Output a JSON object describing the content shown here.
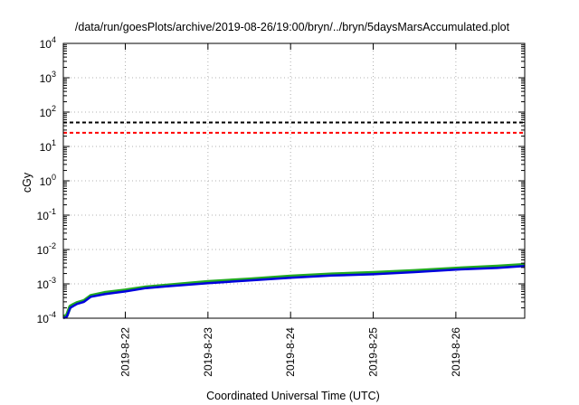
{
  "chart_data": {
    "type": "line",
    "title": "/data/run/goesPlots/archive/2019-08-26/19:00/bryn/../bryn/5daysMarsAccumulated.plot",
    "xlabel": "Coordinated Universal Time (UTC)",
    "ylabel": "cGy",
    "y_scale": "log",
    "ylim": [
      0.0001,
      10000
    ],
    "xlim": [
      "2019-08-21 06:00",
      "2019-08-26 20:00"
    ],
    "grid": true,
    "legend": "none",
    "y_ticks": [
      {
        "value": 0.0001,
        "base": "10",
        "exp": "-4"
      },
      {
        "value": 0.001,
        "base": "10",
        "exp": "-3"
      },
      {
        "value": 0.01,
        "base": "10",
        "exp": "-2"
      },
      {
        "value": 0.1,
        "base": "10",
        "exp": "-1"
      },
      {
        "value": 1,
        "base": "10",
        "exp": "0"
      },
      {
        "value": 10,
        "base": "10",
        "exp": "1"
      },
      {
        "value": 100,
        "base": "10",
        "exp": "2"
      },
      {
        "value": 1000,
        "base": "10",
        "exp": "3"
      },
      {
        "value": 10000,
        "base": "10",
        "exp": "4"
      }
    ],
    "x_ticks": [
      {
        "value": "2019-08-22 00:00",
        "label": "2019-8-22"
      },
      {
        "value": "2019-08-23 00:00",
        "label": "2019-8-23"
      },
      {
        "value": "2019-08-24 00:00",
        "label": "2019-8-24"
      },
      {
        "value": "2019-08-25 00:00",
        "label": "2019-8-25"
      },
      {
        "value": "2019-08-26 00:00",
        "label": "2019-8-26"
      }
    ],
    "reference_lines": [
      {
        "y": 50,
        "color": "#000000",
        "style": "dashed"
      },
      {
        "y": 25,
        "color": "#ff0000",
        "style": "dashed"
      }
    ],
    "series": [
      {
        "color": "#22aa22",
        "x": [
          "2019-08-21 06:00",
          "2019-08-21 07:00",
          "2019-08-21 08:00",
          "2019-08-21 09:00",
          "2019-08-21 10:00",
          "2019-08-21 12:00",
          "2019-08-21 14:00",
          "2019-08-21 18:00",
          "2019-08-22 00:00",
          "2019-08-22 06:00",
          "2019-08-22 12:00",
          "2019-08-23 00:00",
          "2019-08-23 12:00",
          "2019-08-24 00:00",
          "2019-08-24 12:00",
          "2019-08-25 00:00",
          "2019-08-25 12:00",
          "2019-08-26 00:00",
          "2019-08-26 12:00",
          "2019-08-26 20:00"
        ],
        "y": [
          0.00011,
          0.00012,
          0.00022,
          0.00025,
          0.00028,
          0.00032,
          0.00045,
          0.00055,
          0.00065,
          0.0008,
          0.0009,
          0.00115,
          0.00135,
          0.00165,
          0.0019,
          0.0021,
          0.0024,
          0.0028,
          0.0032,
          0.0036
        ]
      },
      {
        "color": "#0000dd",
        "x": [
          "2019-08-21 06:00",
          "2019-08-21 07:00",
          "2019-08-21 08:00",
          "2019-08-21 09:00",
          "2019-08-21 10:00",
          "2019-08-21 12:00",
          "2019-08-21 14:00",
          "2019-08-21 18:00",
          "2019-08-22 00:00",
          "2019-08-22 06:00",
          "2019-08-22 12:00",
          "2019-08-23 00:00",
          "2019-08-23 12:00",
          "2019-08-24 00:00",
          "2019-08-24 12:00",
          "2019-08-25 00:00",
          "2019-08-25 12:00",
          "2019-08-26 00:00",
          "2019-08-26 12:00",
          "2019-08-26 20:00"
        ],
        "y": [
          0.0001,
          0.00011,
          0.0002,
          0.00023,
          0.00026,
          0.0003,
          0.00042,
          0.0005,
          0.0006,
          0.00075,
          0.00085,
          0.00105,
          0.00125,
          0.0015,
          0.00175,
          0.0019,
          0.0022,
          0.0026,
          0.0029,
          0.0033
        ]
      }
    ]
  }
}
